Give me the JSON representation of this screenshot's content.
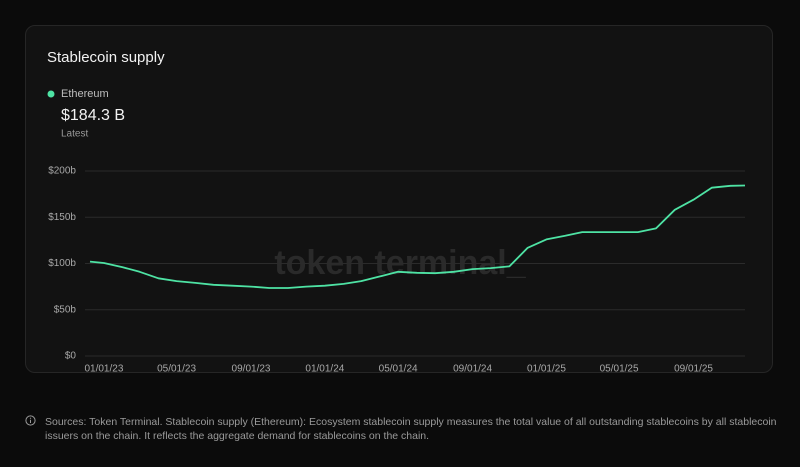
{
  "chart_data": {
    "type": "line",
    "title": "Stablecoin supply",
    "watermark": "token terminal_",
    "latest": {
      "value": 184.3,
      "label": "$184.3 B",
      "caption": "Latest"
    },
    "series": [
      {
        "name": "Ethereum",
        "color": "#4ee3a4",
        "x": [
          "12/09/22",
          "01/01/23",
          "02/01/23",
          "03/01/23",
          "04/01/23",
          "05/01/23",
          "06/01/23",
          "07/01/23",
          "08/01/23",
          "09/01/23",
          "10/01/23",
          "11/01/23",
          "12/01/23",
          "01/01/24",
          "02/01/24",
          "03/01/24",
          "04/01/24",
          "05/01/24",
          "06/01/24",
          "07/01/24",
          "08/01/24",
          "09/01/24",
          "10/01/24",
          "11/01/24",
          "12/01/24",
          "01/01/25",
          "02/01/25",
          "03/01/25",
          "04/01/25",
          "05/01/25",
          "06/01/25",
          "07/01/25",
          "08/01/25",
          "09/01/25",
          "10/01/25",
          "11/01/25",
          "11/25/25"
        ],
        "values": [
          102,
          100.5,
          96,
          91,
          84,
          81,
          79,
          77,
          76,
          75,
          73.5,
          73.5,
          75,
          76,
          78,
          81,
          86,
          91,
          90,
          89.5,
          91,
          94,
          95,
          97,
          117,
          126,
          130,
          134,
          134,
          134,
          134,
          138,
          158,
          169,
          182,
          184,
          184.3
        ]
      }
    ],
    "xlim": [
      "12/09/22",
      "11/25/25"
    ],
    "xticks": [
      "01/01/23",
      "05/01/23",
      "09/01/23",
      "01/01/24",
      "05/01/24",
      "09/01/24",
      "01/01/25",
      "05/01/25",
      "09/01/25"
    ],
    "ylim": [
      0,
      200
    ],
    "yticks": [
      {
        "value": 0,
        "label": "$0"
      },
      {
        "value": 50,
        "label": "$50b"
      },
      {
        "value": 100,
        "label": "$100b"
      },
      {
        "value": 150,
        "label": "$150b"
      },
      {
        "value": 200,
        "label": "$200b"
      }
    ],
    "grid": true,
    "footnote": "Sources: Token Terminal. Stablecoin supply (Ethereum): Ecosystem stablecoin supply measures the total value of all outstanding stablecoins by all stablecoin issuers on the chain. It reflects the aggregate demand for stablecoins on the chain."
  }
}
